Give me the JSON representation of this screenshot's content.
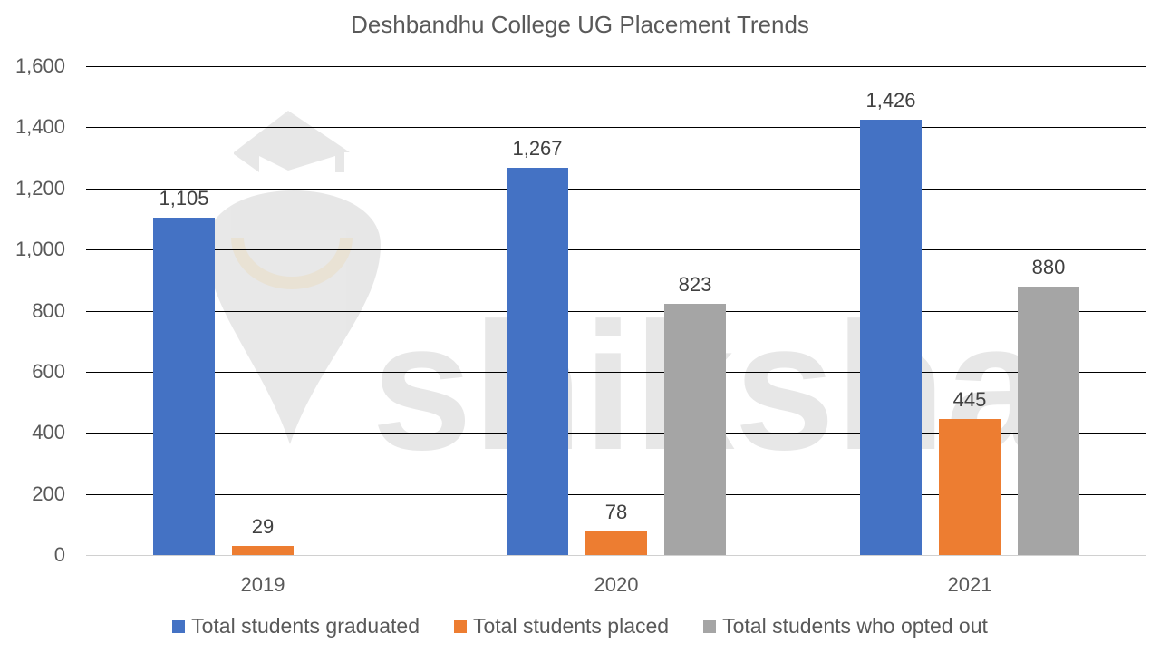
{
  "chart_data": {
    "type": "bar",
    "title": "Deshbandhu College UG Placement Trends",
    "categories": [
      "2019",
      "2020",
      "2021"
    ],
    "series": [
      {
        "name": "Total students graduated",
        "color": "#4472C4",
        "values": [
          1105,
          1267,
          1426
        ],
        "labels": [
          "1,105",
          "1,267",
          "1,426"
        ]
      },
      {
        "name": "Total students placed",
        "color": "#ED7D31",
        "values": [
          29,
          78,
          445
        ],
        "labels": [
          "29",
          "78",
          "445"
        ]
      },
      {
        "name": "Total students who opted out",
        "color": "#A5A5A5",
        "values": [
          null,
          823,
          880
        ],
        "labels": [
          "",
          "823",
          "880"
        ]
      }
    ],
    "xlabel": "",
    "ylabel": "",
    "ylim": [
      0,
      1600
    ],
    "yticks": [
      "0",
      "200",
      "400",
      "600",
      "800",
      "1,000",
      "1,200",
      "1,400",
      "1,600"
    ],
    "grid": true,
    "legend_position": "bottom"
  },
  "watermark": {
    "text": "shiksha"
  }
}
